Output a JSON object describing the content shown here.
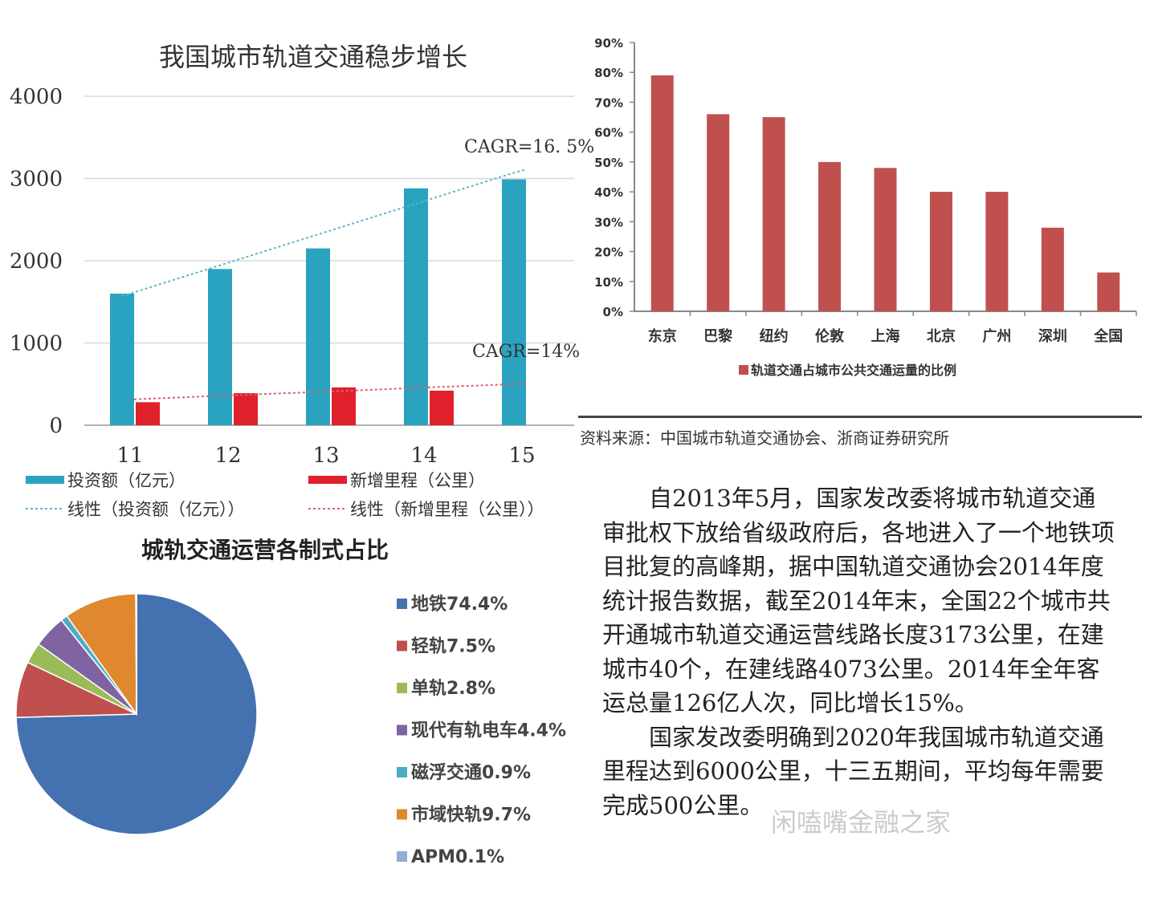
{
  "chart_data": [
    {
      "type": "bar",
      "title": "我国城市轨道交通稳步增长",
      "categories": [
        "11",
        "12",
        "13",
        "14",
        "15"
      ],
      "ylim": [
        0,
        4000
      ],
      "yticks": [
        "0",
        "1000",
        "2000",
        "3000",
        "4000"
      ],
      "series": [
        {
          "name": "投资额（亿元）",
          "color": "#2aa3c0",
          "values": [
            1600,
            1900,
            2150,
            2880,
            2990
          ]
        },
        {
          "name": "新增里程（公里）",
          "color": "#e0202a",
          "values": [
            280,
            390,
            460,
            420,
            0
          ]
        }
      ],
      "trendlines": [
        {
          "name": "线性（投资额（亿元））",
          "color": "#5bb8c6",
          "values": [
            1570,
            1945,
            2320,
            2695,
            3070
          ]
        },
        {
          "name": "线性（新增里程（公里））",
          "color": "#e06070",
          "values": [
            315,
            365,
            410,
            460,
            505
          ]
        }
      ],
      "annotations": [
        "CAGR=16. 5%",
        "CAGR=14%"
      ],
      "grid": true
    },
    {
      "type": "bar",
      "title": "",
      "categories": [
        "东京",
        "巴黎",
        "纽约",
        "伦敦",
        "上海",
        "北京",
        "广州",
        "深圳",
        "全国"
      ],
      "ylim": [
        0,
        90
      ],
      "yticks": [
        "0%",
        "10%",
        "20%",
        "30%",
        "40%",
        "50%",
        "60%",
        "70%",
        "80%",
        "90%"
      ],
      "series": [
        {
          "name": "轨道交通占城市公共交通运量的比例",
          "color": "#c0504d",
          "values": [
            79,
            66,
            65,
            50,
            48,
            40,
            40,
            28,
            13
          ]
        }
      ],
      "grid": false
    },
    {
      "type": "pie",
      "title": "城轨交通运营各制式占比",
      "slices": [
        {
          "label": "地铁74.4%",
          "value": 74.4,
          "color": "#4472b0"
        },
        {
          "label": "轻轨7.5%",
          "value": 7.5,
          "color": "#c0504d"
        },
        {
          "label": "单轨2.8%",
          "value": 2.8,
          "color": "#9bbb59"
        },
        {
          "label": "现代有轨电车4.4%",
          "value": 4.4,
          "color": "#7f63a2"
        },
        {
          "label": "磁浮交通0.9%",
          "value": 0.9,
          "color": "#4bacc6"
        },
        {
          "label": "市域快轨9.7%",
          "value": 9.7,
          "color": "#e0882e"
        },
        {
          "label": "APM0.1%",
          "value": 0.1,
          "color": "#94a9d4"
        }
      ]
    }
  ],
  "source": "资料来源：中国城市轨道交通协会、浙商证券研究所",
  "paragraphs": [
    "自2013年5月，国家发改委将城市轨道交通审批权下放给省级政府后，各地进入了一个地铁项目批复的高峰期，据中国轨道交通协会2014年度统计报告数据，截至2014年末，全国22个城市共开通城市轨道交通运营线路长度3173公里，在建城市40个，在建线路4073公里。2014年全年客运总量126亿人次，同比增长15%。",
    "国家发改委明确到2020年我国城市轨道交通里程达到6000公里，十三五期间，平均每年需要完成500公里。"
  ],
  "watermark": "闲嗑嘴金融之家"
}
